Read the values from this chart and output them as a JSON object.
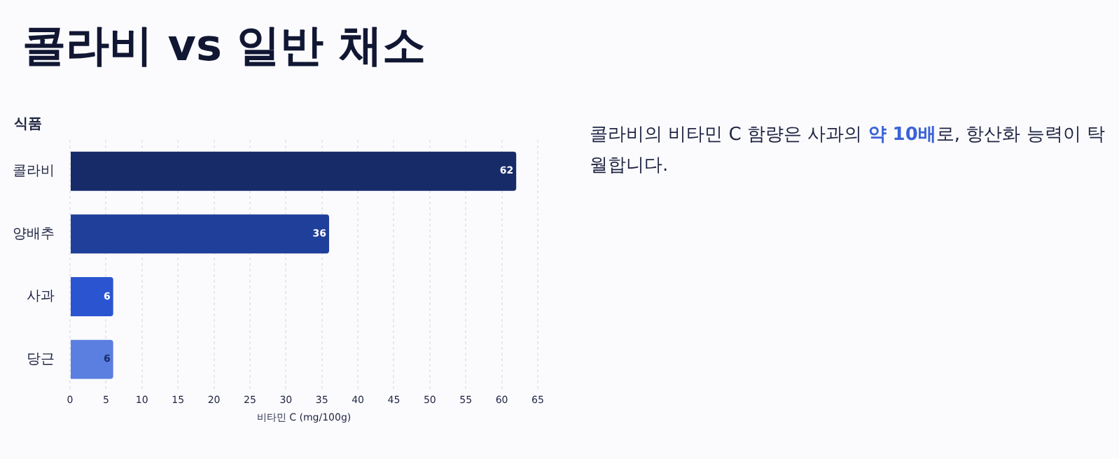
{
  "chart_data": {
    "type": "bar",
    "orientation": "horizontal",
    "title": "콜라비 vs 일반 채소",
    "ylabel": "식품",
    "xlabel": "비타민 C (mg/100g)",
    "categories": [
      "콜라비",
      "양배추",
      "사과",
      "당근"
    ],
    "values": [
      62,
      36,
      6,
      6
    ],
    "colors": [
      "#172b69",
      "#1f3f9a",
      "#2b55d0",
      "#5b7fe0"
    ],
    "xlim": [
      0,
      65
    ],
    "xticks": [
      0,
      5,
      10,
      15,
      20,
      25,
      30,
      35,
      40,
      45,
      50,
      55,
      60,
      65
    ],
    "grid": "x",
    "data_labels": true,
    "annotations": [
      "콜라비의 비타민 C 함량은 사과의 ",
      "약 10배",
      "로, 항산화 능력이 탁월합니다."
    ]
  }
}
